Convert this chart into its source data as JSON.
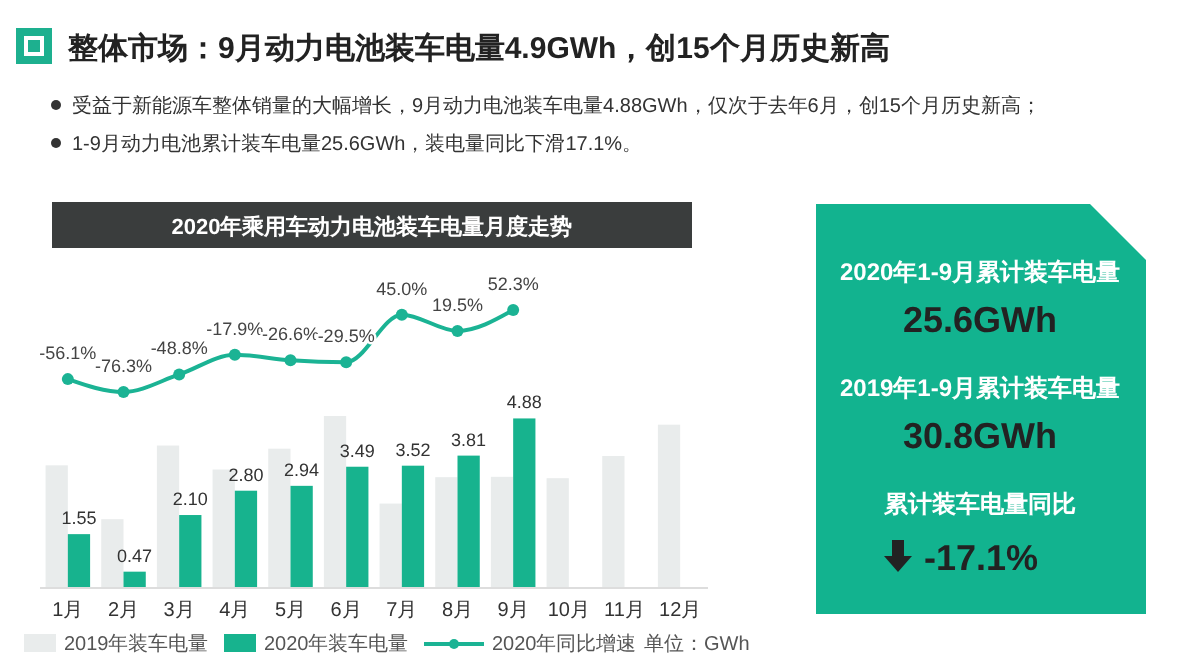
{
  "chart_data": [
    {
      "type": "line",
      "title": "整体市场：9月动力电池装车电量4.9GWh，创15个月历史新高",
      "subtitle": "2020年乘用车动力电池装车电量月度走势",
      "categories": [
        null,
        null,
        null,
        null,
        null,
        null,
        null,
        null,
        null,
        null,
        null,
        null
      ],
      "series": [
        {
          "name": "2020年同比增速",
          "color": "#1bb394",
          "values": [
            -56.1,
            -76.3,
            -48.8,
            -17.9,
            -26.6,
            -29.5,
            45.0,
            19.5,
            52.3,
            null,
            null,
            null
          ],
          "value_labels": [
            "-56.1%",
            "-76.3%",
            "-48.8%",
            "-17.9%",
            "-26.6%",
            "-29.5%",
            "45.0%",
            "19.5%",
            "52.3%",
            null,
            null,
            null
          ]
        }
      ],
      "legend": "bottom",
      "marker": "circle",
      "annotations": [
        "受益于新能源车整体销量的大幅增长，9月动力电池装车电量4.88GWh，仅次于去年6月，创15个月历史新高；",
        "1-9月动力电池累计装车电量25.6GWh，装电量同比下滑17.1%。",
        "2020年1-9月累计装车电量",
        "25.6GWh",
        "2019年1-9月累计装车电量",
        "30.8GWh",
        "累计装车电量同比",
        "-17.1%"
      ]
    },
    {
      "type": "bar",
      "categories": [
        "1月",
        "2月",
        "3月",
        "4月",
        "5月",
        "6月",
        "7月",
        "8月",
        "9月",
        "10月",
        "11月",
        "12月"
      ],
      "series": [
        {
          "name": "2019年装车电量",
          "color": "#e9ecec",
          "values": [
            3.53,
            1.98,
            4.1,
            3.41,
            4.01,
            4.95,
            2.43,
            3.19,
            3.2,
            3.16,
            3.8,
            4.7
          ]
        },
        {
          "name": "2020年装车电量",
          "color": "#17b38e",
          "values": [
            1.55,
            0.47,
            2.1,
            2.8,
            2.94,
            3.49,
            3.52,
            3.81,
            4.88,
            null,
            null,
            null
          ],
          "value_labels": [
            "1.55",
            "0.47",
            "2.10",
            "2.80",
            "2.94",
            "3.49",
            "3.52",
            "3.81",
            "4.88",
            null,
            null,
            null
          ]
        }
      ],
      "tick_labels": "x",
      "legend": "bottom",
      "annotations": [
        "单位：GWh"
      ]
    }
  ]
}
